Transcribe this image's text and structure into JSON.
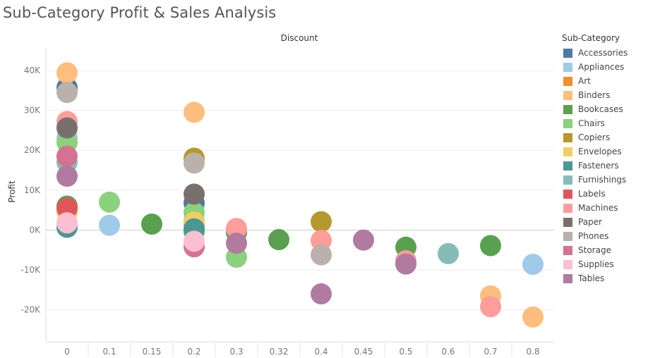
{
  "title": "Sub-Category Profit & Sales Analysis",
  "legend_title": "Sub-Category",
  "chart_data": {
    "type": "scatter",
    "title": "Sub-Category Profit & Sales Analysis",
    "xlabel": "Discount",
    "ylabel": "Profit",
    "categories": [
      "0",
      "0.1",
      "0.15",
      "0.2",
      "0.3",
      "0.32",
      "0.4",
      "0.45",
      "0.5",
      "0.6",
      "0.7",
      "0.8"
    ],
    "y_ticks": [
      {
        "value": 40000,
        "label": "40K"
      },
      {
        "value": 30000,
        "label": "30K"
      },
      {
        "value": 20000,
        "label": "20K"
      },
      {
        "value": 10000,
        "label": "10K"
      },
      {
        "value": 0,
        "label": "0K"
      },
      {
        "value": -10000,
        "label": "-10K"
      },
      {
        "value": -20000,
        "label": "-20K"
      }
    ],
    "ylim": [
      -28000,
      46000
    ],
    "grid": true,
    "legend_position": "right",
    "series": [
      {
        "name": "Accessories",
        "color": "#4E79A7",
        "points": [
          {
            "x": "0",
            "y": 35700
          },
          {
            "x": "0.2",
            "y": 6800
          }
        ]
      },
      {
        "name": "Appliances",
        "color": "#A0CBE8",
        "points": [
          {
            "x": "0",
            "y": 23200
          },
          {
            "x": "0.1",
            "y": 1200
          },
          {
            "x": "0.2",
            "y": 2500
          },
          {
            "x": "0.8",
            "y": -8600
          }
        ]
      },
      {
        "name": "Art",
        "color": "#F28E2B",
        "points": [
          {
            "x": "0",
            "y": 5200
          },
          {
            "x": "0.2",
            "y": 1300
          }
        ]
      },
      {
        "name": "Binders",
        "color": "#FFBE7D",
        "points": [
          {
            "x": "0",
            "y": 39400
          },
          {
            "x": "0.2",
            "y": 29500
          },
          {
            "x": "0.7",
            "y": -16500
          },
          {
            "x": "0.8",
            "y": -21800
          }
        ]
      },
      {
        "name": "Bookcases",
        "color": "#59A14F",
        "points": [
          {
            "x": "0",
            "y": 6000
          },
          {
            "x": "0.15",
            "y": 1500
          },
          {
            "x": "0.2",
            "y": -300
          },
          {
            "x": "0.3",
            "y": -600
          },
          {
            "x": "0.32",
            "y": -2400
          },
          {
            "x": "0.5",
            "y": -4300
          },
          {
            "x": "0.7",
            "y": -3900
          }
        ]
      },
      {
        "name": "Chairs",
        "color": "#8CD17D",
        "points": [
          {
            "x": "0",
            "y": 22000
          },
          {
            "x": "0.1",
            "y": 7000
          },
          {
            "x": "0.2",
            "y": 4400
          },
          {
            "x": "0.3",
            "y": -6800
          }
        ]
      },
      {
        "name": "Copiers",
        "color": "#B6992D",
        "points": [
          {
            "x": "0.2",
            "y": 18000
          },
          {
            "x": "0.4",
            "y": 2100
          }
        ]
      },
      {
        "name": "Envelopes",
        "color": "#F1CE63",
        "points": [
          {
            "x": "0",
            "y": 4500
          },
          {
            "x": "0.2",
            "y": 2000
          }
        ]
      },
      {
        "name": "Fasteners",
        "color": "#499894",
        "points": [
          {
            "x": "0",
            "y": 700
          },
          {
            "x": "0.2",
            "y": 300
          }
        ]
      },
      {
        "name": "Furnishings",
        "color": "#86BCB6",
        "points": [
          {
            "x": "0",
            "y": 17000
          },
          {
            "x": "0.6",
            "y": -5900
          }
        ]
      },
      {
        "name": "Labels",
        "color": "#E15759",
        "points": [
          {
            "x": "0",
            "y": 5500
          }
        ]
      },
      {
        "name": "Machines",
        "color": "#FF9D9A",
        "points": [
          {
            "x": "0",
            "y": 27200
          },
          {
            "x": "0.3",
            "y": 400
          },
          {
            "x": "0.4",
            "y": -2600
          },
          {
            "x": "0.5",
            "y": -7700
          },
          {
            "x": "0.7",
            "y": -19200
          }
        ]
      },
      {
        "name": "Paper",
        "color": "#79706E",
        "points": [
          {
            "x": "0",
            "y": 25600
          },
          {
            "x": "0.2",
            "y": 9000
          }
        ]
      },
      {
        "name": "Phones",
        "color": "#BAB0AC",
        "points": [
          {
            "x": "0",
            "y": 34500
          },
          {
            "x": "0.2",
            "y": 16800
          },
          {
            "x": "0.4",
            "y": -6200
          }
        ]
      },
      {
        "name": "Storage",
        "color": "#D37295",
        "points": [
          {
            "x": "0",
            "y": 18500
          },
          {
            "x": "0.2",
            "y": -4200
          }
        ]
      },
      {
        "name": "Supplies",
        "color": "#FABFD2",
        "points": [
          {
            "x": "0",
            "y": 1800
          },
          {
            "x": "0.2",
            "y": -2800
          }
        ]
      },
      {
        "name": "Tables",
        "color": "#B07AA1",
        "points": [
          {
            "x": "0",
            "y": 13500
          },
          {
            "x": "0.3",
            "y": -3300
          },
          {
            "x": "0.4",
            "y": -16000
          },
          {
            "x": "0.45",
            "y": -2500
          },
          {
            "x": "0.5",
            "y": -8500
          }
        ]
      }
    ]
  }
}
